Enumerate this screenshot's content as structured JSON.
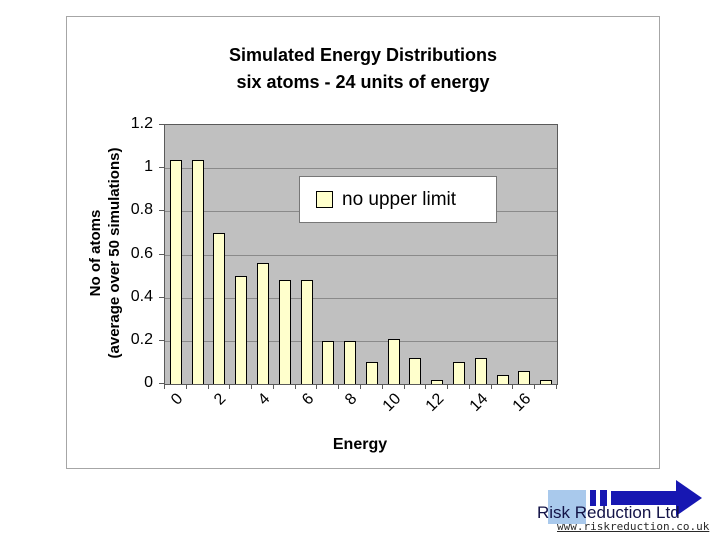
{
  "slide": {
    "title_line1": "Simulated Energy Distributions",
    "title_line2": "six atoms - 24 units of energy"
  },
  "chart_data": {
    "type": "bar",
    "title": "Simulated Energy Distributions six atoms - 24 units of energy",
    "categories": [
      0,
      1,
      2,
      3,
      4,
      5,
      6,
      7,
      8,
      9,
      10,
      11,
      12,
      13,
      14,
      15,
      16,
      17
    ],
    "values": [
      1.04,
      1.04,
      0.7,
      0.5,
      0.56,
      0.48,
      0.48,
      0.2,
      0.2,
      0.1,
      0.21,
      0.12,
      0.02,
      0.1,
      0.12,
      0.04,
      0.06,
      0.02
    ],
    "series_name": "no upper limit",
    "legend_label": "no upper limit",
    "legend_position": "inside-center-right",
    "xlabel": "Energy",
    "ylabel_line1": "No of atoms",
    "ylabel_line2": "(average over 50 simulations)",
    "ylim": [
      0,
      1.2
    ],
    "ytick_labels": [
      "1.2",
      "1",
      "0.8",
      "0.6",
      "0.4",
      "0.2",
      "0"
    ],
    "xtick_labels": [
      "0",
      "2",
      "4",
      "6",
      "8",
      "10",
      "12",
      "14",
      "16"
    ],
    "xtick_label_every": 2,
    "grid": true,
    "gridline_step": 0.2,
    "bar_color": "#ffffcc",
    "bar_border_color": "#000000",
    "plot_bg_color": "#c0c0c0"
  },
  "logo": {
    "company": "Risk Reduction Ltd",
    "website": "www.riskreduction.co.uk",
    "arrow_color": "#1717b2",
    "square_color": "#a9c9ec"
  }
}
